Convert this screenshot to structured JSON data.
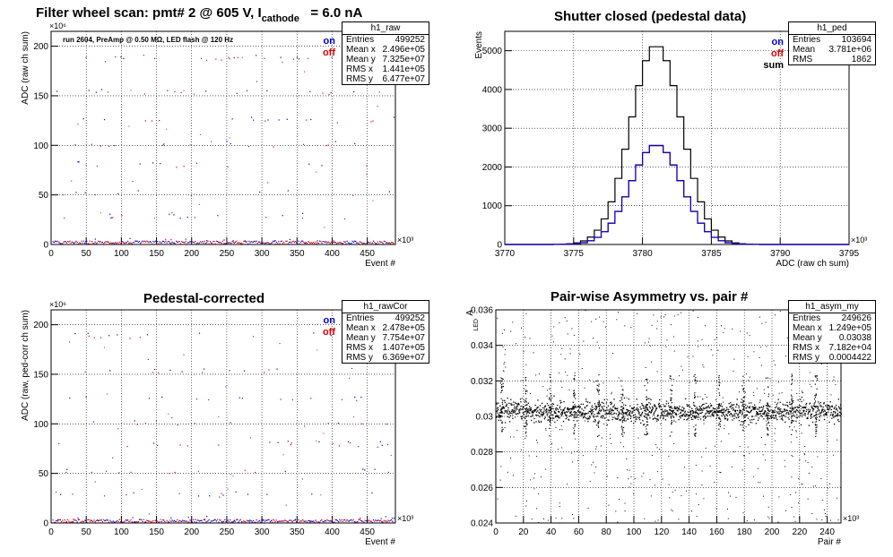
{
  "chart_data": [
    {
      "type": "scatter",
      "title": "Filter wheel scan: pmt#   2 @   605 V, I",
      "title_sub": "cathode",
      "title_tail": "= 6.0 nA",
      "annotation": "run 2604, PreAmp @ 0.50 MΩ, LED flash @  120 Hz",
      "xlabel": "Event #",
      "ylabel": "ADC (raw ch sum)",
      "x_exponent": "×10³",
      "y_exponent": "×10⁶",
      "xlim": [
        0,
        490
      ],
      "ylim": [
        0,
        215
      ],
      "xticks": [
        0,
        50,
        100,
        150,
        200,
        250,
        300,
        350,
        400,
        450
      ],
      "yticks": [
        0,
        50,
        100,
        150,
        200
      ],
      "legend": [
        "on",
        "off"
      ],
      "levels": [
        3,
        28,
        52,
        80,
        100,
        125,
        153,
        188
      ],
      "stats": {
        "name": "h1_raw",
        "rows": [
          [
            "Entries",
            "499252"
          ],
          [
            "Mean x",
            "2.496e+05"
          ],
          [
            "Mean y",
            "7.325e+07"
          ],
          [
            "RMS x",
            "1.441e+05"
          ],
          [
            "RMS y",
            "6.477e+07"
          ]
        ]
      }
    },
    {
      "type": "line",
      "title": "Shutter closed (pedestal data)",
      "xlabel": "ADC (raw ch sum)",
      "ylabel": "Events",
      "x_exponent": "×10³",
      "xlim": [
        3770,
        3795
      ],
      "ylim": [
        0,
        5500
      ],
      "xticks": [
        3770,
        3775,
        3780,
        3785,
        3790,
        3795
      ],
      "yticks": [
        0,
        1000,
        2000,
        3000,
        4000,
        5000
      ],
      "legend": [
        "on",
        "off",
        "sum"
      ],
      "gauss": {
        "mean": 3781,
        "sigma": 1.85,
        "peak_sum": 5150,
        "peak_on": 2580,
        "peak_off": 2570
      },
      "stats": {
        "name": "h1_ped",
        "rows": [
          [
            "Entries",
            "103694"
          ],
          [
            "Mean",
            "3.781e+06"
          ],
          [
            "RMS",
            "1862"
          ]
        ]
      }
    },
    {
      "type": "scatter",
      "title": "Pedestal-corrected",
      "xlabel": "Event #",
      "ylabel": "ADC (raw, ped-corr ch sum)",
      "x_exponent": "×10³",
      "y_exponent": "×10⁶",
      "xlim": [
        0,
        490
      ],
      "ylim": [
        0,
        215
      ],
      "xticks": [
        0,
        50,
        100,
        150,
        200,
        250,
        300,
        350,
        400,
        450
      ],
      "yticks": [
        0,
        50,
        100,
        150,
        200
      ],
      "legend": [
        "on",
        "off"
      ],
      "levels": [
        3,
        28,
        52,
        80,
        100,
        125,
        153,
        188
      ],
      "stats": {
        "name": "h1_rawCor",
        "rows": [
          [
            "Entries",
            "499252"
          ],
          [
            "Mean x",
            "2.478e+05"
          ],
          [
            "Mean y",
            "7.754e+07"
          ],
          [
            "RMS x",
            "1.407e+05"
          ],
          [
            "RMS y",
            "6.369e+07"
          ]
        ]
      }
    },
    {
      "type": "scatter",
      "title": "Pair-wise Asymmetry vs. pair #",
      "xlabel": "Pair #",
      "ylabel": "A",
      "ylabel_sub": "LED",
      "x_exponent": "×10³",
      "xlim": [
        0,
        250
      ],
      "ylim": [
        0.024,
        0.036
      ],
      "xticks": [
        0,
        20,
        40,
        60,
        80,
        100,
        120,
        140,
        160,
        180,
        200,
        220,
        240
      ],
      "yticks": [
        0.024,
        0.026,
        0.028,
        0.03,
        0.032,
        0.034,
        0.036
      ],
      "ytick_labels": [
        "0.024",
        "0.026",
        "0.028",
        "0.03",
        "0.032",
        "0.034",
        "0.036"
      ],
      "band_center": 0.0303,
      "stats": {
        "name": "h1_asym_my",
        "rows": [
          [
            "Entries",
            "249626"
          ],
          [
            "Mean x",
            "1.249e+05"
          ],
          [
            "Mean y",
            "0.03038"
          ],
          [
            "RMS x",
            "7.182e+04"
          ],
          [
            "RMS y",
            "0.0004422"
          ]
        ]
      }
    }
  ]
}
